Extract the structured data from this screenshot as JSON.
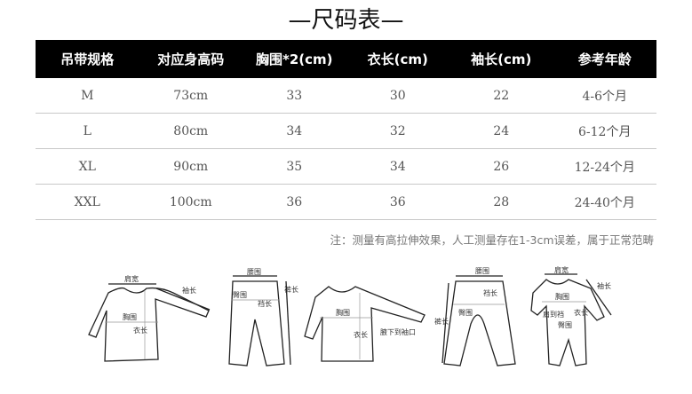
{
  "title": "—尺码表—",
  "table": {
    "headers": [
      "吊带规格",
      "对应身高码",
      "胸围*2(cm)",
      "衣长(cm)",
      "袖长(cm)",
      "参考年龄"
    ],
    "rows": [
      [
        "M",
        "73cm",
        "33",
        "30",
        "22",
        "4-6个月"
      ],
      [
        "L",
        "80cm",
        "34",
        "32",
        "24",
        "6-12个月"
      ],
      [
        "XL",
        "90cm",
        "35",
        "34",
        "26",
        "12-24个月"
      ],
      [
        "XXL",
        "100cm",
        "36",
        "36",
        "28",
        "24-40个月"
      ]
    ]
  },
  "note": "注：测量有高拉伸效果，人工测量存在1-3cm误差，属于正常范畴",
  "diagrams": {
    "shirt": {
      "shoulder": "肩宽",
      "sleeve": "袖长",
      "chest": "胸围",
      "length": "衣长"
    },
    "pants": {
      "waist": "腰围",
      "hip": "臀围",
      "rise": "裆长",
      "length": "裤长"
    },
    "raglan": {
      "chest": "胸围",
      "length": "衣长",
      "underarm": "腋下到袖口"
    },
    "open_pants": {
      "waist": "腰围",
      "hip": "臀围",
      "rise": "裆长",
      "length": "裤长"
    },
    "romper": {
      "shoulder": "肩宽",
      "sleeve": "袖长",
      "chest": "胸围",
      "hip": "臀围",
      "length": "衣长",
      "shoulder_to_crotch": "肩到裆"
    }
  }
}
